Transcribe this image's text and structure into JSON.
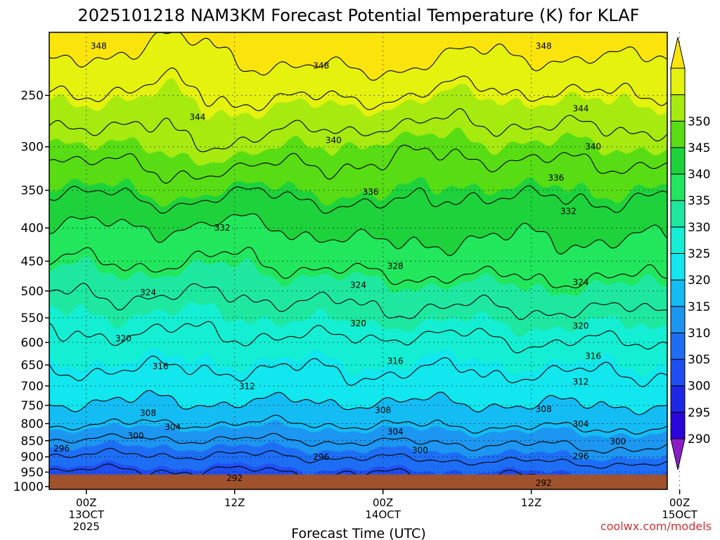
{
  "chart_data": {
    "type": "heatmap",
    "title": "2025101218 NAM3KM Forecast Potential Temperature (K) for KLAF",
    "xlabel": "Forecast Time (UTC)",
    "ylabel": "",
    "credit": "coolwx.com/models",
    "y_axis": {
      "scale": "log",
      "inverted": true,
      "range": [
        1010,
        200
      ],
      "ticks": [
        250,
        300,
        350,
        400,
        450,
        500,
        550,
        600,
        650,
        700,
        750,
        800,
        850,
        900,
        950,
        1000
      ]
    },
    "x_axis": {
      "range_hours": [
        -3,
        47
      ],
      "ticks": [
        {
          "hour": 0,
          "lines": [
            "00Z",
            "13OCT",
            "2025"
          ]
        },
        {
          "hour": 12,
          "lines": [
            "12Z"
          ]
        },
        {
          "hour": 24,
          "lines": [
            "00Z",
            "14OCT"
          ]
        },
        {
          "hour": 36,
          "lines": [
            "12Z"
          ]
        },
        {
          "hour": 48,
          "lines": [
            "00Z",
            "15OCT"
          ]
        }
      ]
    },
    "grid": true,
    "colorbar": {
      "placement": "right",
      "levels": [
        290,
        295,
        300,
        305,
        310,
        315,
        320,
        325,
        330,
        335,
        340,
        345,
        350
      ],
      "colors": [
        "#8c1ec8",
        "#2a06dc",
        "#1c28e6",
        "#1f4ff2",
        "#1e6ef5",
        "#1c96f0",
        "#14bcf4",
        "#12e6ee",
        "#14eed2",
        "#1ee8a0",
        "#22e65c",
        "#1ed23c",
        "#58dc14",
        "#a6ea10",
        "#e4f20e",
        "#fbe40c"
      ]
    },
    "contour_interval": 4,
    "profiles": [
      {
        "hour": -3,
        "theta": [
          346,
          339,
          334,
          329.5,
          326,
          322.5,
          319.5,
          317.5,
          314.5,
          312,
          309.5,
          306.5,
          301.5,
          297.5,
          293.5,
          291.5
        ]
      },
      {
        "hour": 0,
        "theta": [
          345.5,
          339,
          334,
          329.5,
          326,
          322.5,
          319.5,
          317,
          314.5,
          312,
          309.5,
          306.5,
          301.5,
          297.5,
          293.5,
          291.5
        ]
      },
      {
        "hour": 6,
        "theta": [
          345,
          341,
          336.5,
          330,
          326.5,
          322.5,
          319.5,
          317,
          314.5,
          312,
          309.5,
          306,
          301.5,
          297.5,
          293.5,
          291.5
        ]
      },
      {
        "hour": 12,
        "theta": [
          346.5,
          341.5,
          334.5,
          329,
          325.5,
          322.5,
          319.5,
          317,
          314.5,
          312,
          309.5,
          306,
          301.5,
          297.5,
          293.5,
          291.5
        ]
      },
      {
        "hour": 18,
        "theta": [
          346.5,
          340,
          335,
          330.5,
          327,
          323,
          320.5,
          317.5,
          314.5,
          312.5,
          309.5,
          306,
          302,
          298,
          294,
          292
        ]
      },
      {
        "hour": 24,
        "theta": [
          346.5,
          339,
          336,
          332,
          328,
          324,
          321,
          317,
          315,
          312.5,
          309.5,
          306.5,
          302.5,
          298.5,
          294.5,
          292.5
        ]
      },
      {
        "hour": 30,
        "theta": [
          345,
          339,
          334,
          331,
          328,
          324,
          320.5,
          317,
          314.5,
          312.5,
          309.5,
          306.5,
          302.5,
          299,
          294.5,
          292.5
        ]
      },
      {
        "hour": 36,
        "theta": [
          345.5,
          339.5,
          335,
          331,
          328,
          324.5,
          321,
          318,
          315,
          312.5,
          310,
          307,
          303,
          299.5,
          295,
          292.5
        ]
      },
      {
        "hour": 42,
        "theta": [
          346,
          340,
          335,
          331,
          328,
          324.5,
          321,
          318,
          315,
          312.5,
          310,
          307,
          303.5,
          300,
          295.5,
          293
        ]
      },
      {
        "hour": 47,
        "theta": [
          345.5,
          340,
          334.5,
          331,
          328,
          324.5,
          321,
          318,
          315,
          312.5,
          310,
          307,
          303.5,
          300.5,
          296,
          293
        ]
      }
    ],
    "contour_labels": [
      {
        "value": 348,
        "hour": 1,
        "p": 210
      },
      {
        "value": 348,
        "hour": 19,
        "p": 225
      },
      {
        "value": 348,
        "hour": 37,
        "p": 210
      },
      {
        "value": 344,
        "hour": 9,
        "p": 270
      },
      {
        "value": 344,
        "hour": 40,
        "p": 262
      },
      {
        "value": 340,
        "hour": 20,
        "p": 293
      },
      {
        "value": 340,
        "hour": 41,
        "p": 300
      },
      {
        "value": 336,
        "hour": 23,
        "p": 352
      },
      {
        "value": 336,
        "hour": 38,
        "p": 335
      },
      {
        "value": 332,
        "hour": 11,
        "p": 400
      },
      {
        "value": 332,
        "hour": 39,
        "p": 377
      },
      {
        "value": 328,
        "hour": 25,
        "p": 458
      },
      {
        "value": 324,
        "hour": 5,
        "p": 503
      },
      {
        "value": 324,
        "hour": 22,
        "p": 490
      },
      {
        "value": 324,
        "hour": 40,
        "p": 485
      },
      {
        "value": 320,
        "hour": 3,
        "p": 592
      },
      {
        "value": 320,
        "hour": 22,
        "p": 561
      },
      {
        "value": 320,
        "hour": 40,
        "p": 566
      },
      {
        "value": 316,
        "hour": 6,
        "p": 653
      },
      {
        "value": 316,
        "hour": 25,
        "p": 641
      },
      {
        "value": 316,
        "hour": 41,
        "p": 630
      },
      {
        "value": 312,
        "hour": 13,
        "p": 701
      },
      {
        "value": 312,
        "hour": 40,
        "p": 690
      },
      {
        "value": 308,
        "hour": 5,
        "p": 771
      },
      {
        "value": 308,
        "hour": 24,
        "p": 763
      },
      {
        "value": 308,
        "hour": 37,
        "p": 760
      },
      {
        "value": 304,
        "hour": 7,
        "p": 810
      },
      {
        "value": 304,
        "hour": 25,
        "p": 823
      },
      {
        "value": 304,
        "hour": 40,
        "p": 801
      },
      {
        "value": 300,
        "hour": 4,
        "p": 836
      },
      {
        "value": 300,
        "hour": 27,
        "p": 880
      },
      {
        "value": 300,
        "hour": 43,
        "p": 853
      },
      {
        "value": 296,
        "hour": -2,
        "p": 874
      },
      {
        "value": 296,
        "hour": 19,
        "p": 901
      },
      {
        "value": 296,
        "hour": 40,
        "p": 898
      },
      {
        "value": 292,
        "hour": 12,
        "p": 970
      },
      {
        "value": 292,
        "hour": 37,
        "p": 987
      }
    ]
  }
}
